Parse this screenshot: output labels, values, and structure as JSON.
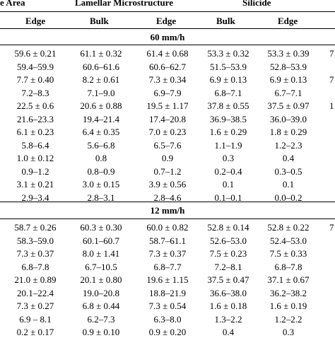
{
  "header": {
    "group_left_partial": "e Area",
    "group_lamellar": "Lamellar Microstructure",
    "group_silicide": "Silicide",
    "col_edge_1": "Edge",
    "col_bulk_2": "Bulk",
    "col_edge_2": "Edge",
    "col_bulk_3": "Bulk",
    "col_edge_3": "Edge"
  },
  "sections": [
    {
      "label": "60 mm/h",
      "rows": [
        {
          "c": [
            "59.6 ± 0.21",
            "61.1 ± 0.32",
            "61.4 ± 0.68",
            "53.3 ± 0.32",
            "53.3 ± 0.39"
          ],
          "e": "7"
        },
        {
          "c": [
            "59.4–59.9",
            "60.6–61.6",
            "60.6–62.7",
            "51.5–53.9",
            "52.8–53.9"
          ],
          "e": ""
        },
        {
          "c": [
            "7.7 ± 0.40",
            "8.2 ± 0.61",
            "7.3 ± 0.34",
            "6.9 ± 0.13",
            "6.9 ± 0.13"
          ],
          "e": "7"
        },
        {
          "c": [
            "7.2–8.3",
            "7.1–9.0",
            "6.9–7.9",
            "6.8–7.1",
            "6.7–7.1"
          ],
          "e": ""
        },
        {
          "c": [
            "22.5 ± 0.6",
            "20.6 ± 0.88",
            "19.5 ± 1.17",
            "37.8 ± 0.55",
            "37.5 ± 0.97"
          ],
          "e": "1"
        },
        {
          "c": [
            "21.6–23.3",
            "19.4–21.4",
            "17.4–20.8",
            "36.9–38.5",
            "36.0–39.0"
          ],
          "e": ""
        },
        {
          "c": [
            "6.1 ± 0.23",
            "6.4 ± 0.35",
            "7.0 ± 0.23",
            "1.6 ± 0.29",
            "1.8 ± 0.29"
          ],
          "e": ""
        },
        {
          "c": [
            "5.8–6.4",
            "5.6–6.8",
            "6.5–7.6",
            "1.1–1.9",
            "1.2–2.3"
          ],
          "e": ""
        },
        {
          "c": [
            "1.0 ± 0.12",
            "0.8",
            "0.9",
            "0.3",
            "0.4"
          ],
          "e": ""
        },
        {
          "c": [
            "0.9–1.2",
            "0.8–0.9",
            "0.7–1.2",
            "0.2–0.4",
            "0.3–0.5"
          ],
          "e": ""
        },
        {
          "c": [
            "3.1 ± 0.21",
            "3.0 ± 0.15",
            "3.9 ± 0.56",
            "0.1",
            "0.1"
          ],
          "e": ""
        },
        {
          "c": [
            "2.9–3.4",
            "2.8–3.1",
            "2.8–4.6",
            "0.1–0.1",
            "0.0–0.2"
          ],
          "e": ""
        }
      ]
    },
    {
      "label": "12 mm/h",
      "rows": [
        {
          "c": [
            "58.7 ± 0.26",
            "60.3 ± 0.30",
            "60.0 ± 0.82",
            "52.8 ± 0.14",
            "52.8 ± 0.22"
          ],
          "e": "7"
        },
        {
          "c": [
            "58.3–59.0",
            "60.1–60.7",
            "58.7–61.1",
            "52.6–53.0",
            "52.4–53.0"
          ],
          "e": ""
        },
        {
          "c": [
            "7.3 ± 0.37",
            "8.0 ± 1.41",
            "7.3 ± 0.37",
            "7.5 ± 0.23",
            "7.5 ± 0.33"
          ],
          "e": ""
        },
        {
          "c": [
            "6.8–7.8",
            "6.7–10.5",
            "6.8–7.7",
            "7.2–8.1",
            "6.8–7.8"
          ],
          "e": ""
        },
        {
          "c": [
            "21.0 ± 0.89",
            "20.1 ± 0.80",
            "19.6 ± 1.15",
            "37.5 ± 0.47",
            "37.1 ± 0.67"
          ],
          "e": ""
        },
        {
          "c": [
            "20.1–22.4",
            "19.0–20.8",
            "18.8–21.9",
            "36.6–38.0",
            "36.2–38.2"
          ],
          "e": ""
        },
        {
          "c": [
            "7.3 ± 0.27",
            "6.8 ± 0.44",
            "7.3 ± 0.54",
            "1.6 ± 0.18",
            "1.6 ± 0.19"
          ],
          "e": ""
        },
        {
          "c": [
            "6.9 – 8.1",
            "6.2–7.3",
            "6.3–8.0",
            "1.3–2.2",
            "1.2–2.2"
          ],
          "e": ""
        },
        {
          "c": [
            "0.2 ± 0.17",
            "0.9 ± 0.10",
            "0.9 ± 0.20",
            "0.4",
            "0.3"
          ],
          "e": ""
        }
      ]
    }
  ]
}
